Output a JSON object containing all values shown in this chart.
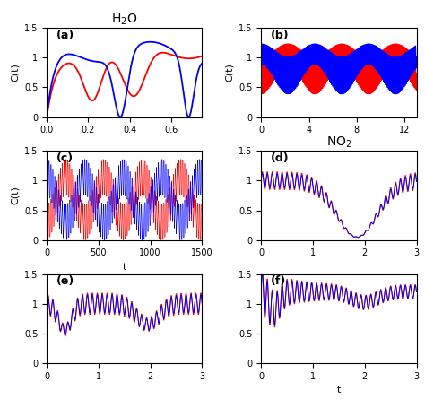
{
  "panel_labels": [
    "(a)",
    "(b)",
    "(c)",
    "(d)",
    "(e)",
    "(f)"
  ],
  "ylabel": "C(t)",
  "xlabel": "t",
  "xlim_a": [
    0,
    0.75
  ],
  "xlim_b": [
    0,
    13
  ],
  "xlim_c": [
    0,
    1500
  ],
  "xlim_d": [
    0,
    3
  ],
  "xlim_e": [
    0,
    3
  ],
  "xlim_f": [
    0,
    3
  ],
  "ylim": [
    0,
    1.5
  ],
  "yticks": [
    0,
    0.5,
    1,
    1.5
  ],
  "xticks_a": [
    0,
    0.2,
    0.4,
    0.6
  ],
  "xticks_b": [
    0,
    4,
    8,
    12
  ],
  "xticks_c": [
    0,
    500,
    1000,
    1500
  ],
  "xticks_def": [
    0,
    1,
    2,
    3
  ],
  "color_blue": "#0000FF",
  "color_red": "#FF0000",
  "bg_color": "#FFFFFF",
  "fig_width": 4.74,
  "fig_height": 4.45,
  "dpi": 100
}
